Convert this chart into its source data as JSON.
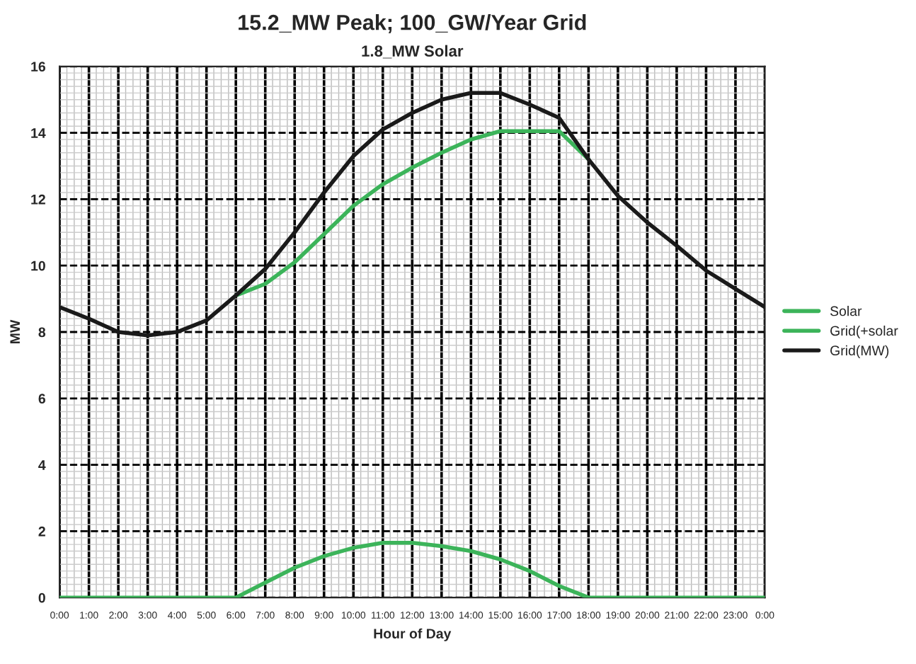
{
  "chart_data": {
    "type": "line",
    "title": "15.2_MW Peak; 100_GW/Year Grid",
    "subtitle": "1.8_MW Solar",
    "xlabel": "Hour of Day",
    "ylabel": "MW",
    "x": [
      0,
      1,
      2,
      3,
      4,
      5,
      6,
      7,
      8,
      9,
      10,
      11,
      12,
      13,
      14,
      15,
      16,
      17,
      18,
      19,
      20,
      21,
      22,
      23,
      24
    ],
    "series": [
      {
        "name": "Solar",
        "color": "#3cb45a",
        "values": [
          0,
          0,
          0,
          0,
          0,
          0,
          0,
          0.45,
          0.9,
          1.25,
          1.5,
          1.65,
          1.65,
          1.55,
          1.4,
          1.15,
          0.8,
          0.35,
          0,
          0,
          0,
          0,
          0,
          0,
          0
        ]
      },
      {
        "name": "Grid(+solar",
        "color": "#3cb45a",
        "values": [
          null,
          null,
          null,
          null,
          null,
          null,
          9.1,
          9.45,
          10.1,
          10.95,
          11.8,
          12.45,
          12.95,
          13.4,
          13.8,
          14.05,
          14.05,
          14.05,
          13.2,
          null,
          null,
          null,
          null,
          null,
          null
        ]
      },
      {
        "name": "Grid(MW)",
        "color": "#1a1a1a",
        "values": [
          8.75,
          8.4,
          8.0,
          7.9,
          8.0,
          8.35,
          9.1,
          9.9,
          11.0,
          12.2,
          13.3,
          14.1,
          14.6,
          15.0,
          15.2,
          15.2,
          14.85,
          14.45,
          13.2,
          12.1,
          11.3,
          10.6,
          9.85,
          9.3,
          8.75
        ]
      }
    ],
    "xlim": [
      0,
      24
    ],
    "xticks": [
      {
        "value": 0,
        "label": "0:00"
      },
      {
        "value": 1,
        "label": "1:00"
      },
      {
        "value": 2,
        "label": "2:00"
      },
      {
        "value": 3,
        "label": "3:00"
      },
      {
        "value": 4,
        "label": "4:00"
      },
      {
        "value": 5,
        "label": "5:00"
      },
      {
        "value": 6,
        "label": "6:00"
      },
      {
        "value": 7,
        "label": "7:00"
      },
      {
        "value": 8,
        "label": "8:00"
      },
      {
        "value": 9,
        "label": "9:00"
      },
      {
        "value": 10,
        "label": "10:00"
      },
      {
        "value": 11,
        "label": "11:00"
      },
      {
        "value": 12,
        "label": "12:00"
      },
      {
        "value": 13,
        "label": "13:00"
      },
      {
        "value": 14,
        "label": "14:00"
      },
      {
        "value": 15,
        "label": "15:00"
      },
      {
        "value": 16,
        "label": "16:00"
      },
      {
        "value": 17,
        "label": "17:00"
      },
      {
        "value": 18,
        "label": "18:00"
      },
      {
        "value": 19,
        "label": "19:00"
      },
      {
        "value": 20,
        "label": "20:00"
      },
      {
        "value": 21,
        "label": "21:00"
      },
      {
        "value": 22,
        "label": "22:00"
      },
      {
        "value": 23,
        "label": "23:00"
      },
      {
        "value": 24,
        "label": "0:00"
      }
    ],
    "ylim": [
      0,
      16
    ],
    "yticks": [
      0,
      2,
      4,
      6,
      8,
      10,
      12,
      14,
      16
    ],
    "grid": true,
    "legend": "right",
    "marker": "none",
    "line_style": "solid"
  }
}
